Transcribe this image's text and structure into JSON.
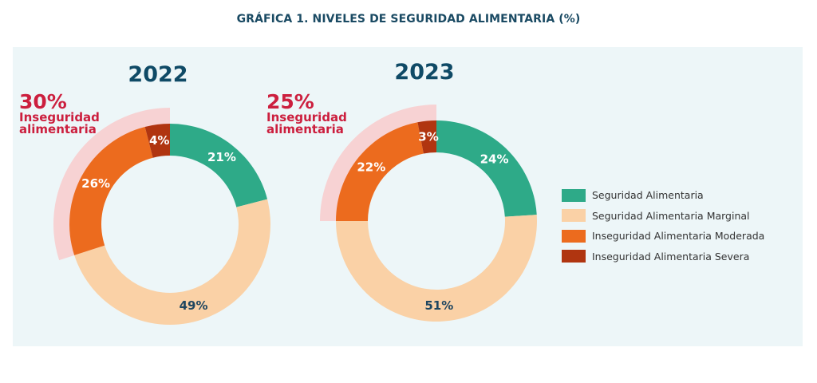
{
  "title": "GRÁFICA 1. NIVELES DE SEGURIDAD ALIMENTARIA (%)",
  "chart_data": [
    {
      "type": "donut",
      "title": "2022",
      "categories": [
        "Seguridad Alimentaria",
        "Seguridad Alimentaria Marginal",
        "Inseguridad Alimentaria Moderada",
        "Inseguridad Alimentaria Severa"
      ],
      "values": [
        21,
        49,
        26,
        4
      ],
      "labels": [
        "21%",
        "49%",
        "26%",
        "4%"
      ],
      "insecurity_total": "30%",
      "insecurity_label": [
        "Inseguridad",
        "alimentaria"
      ]
    },
    {
      "type": "donut",
      "title": "2023",
      "categories": [
        "Seguridad Alimentaria",
        "Seguridad Alimentaria Marginal",
        "Inseguridad Alimentaria Moderada",
        "Inseguridad Alimentaria Severa"
      ],
      "values": [
        24,
        51,
        22,
        3
      ],
      "labels": [
        "24%",
        "51%",
        "22%",
        "3%"
      ],
      "insecurity_total": "25%",
      "insecurity_label": [
        "Inseguridad",
        "alimentaria"
      ]
    }
  ],
  "colors": [
    "#2eaa88",
    "#fad1a6",
    "#ec6b1e",
    "#b03510"
  ],
  "highlight_color": "#f7d2d3",
  "legend": [
    "Seguridad Alimentaria",
    "Seguridad Alimentaria Marginal",
    "Inseguridad Alimentaria Moderada",
    "Inseguridad Alimentaria Severa"
  ]
}
